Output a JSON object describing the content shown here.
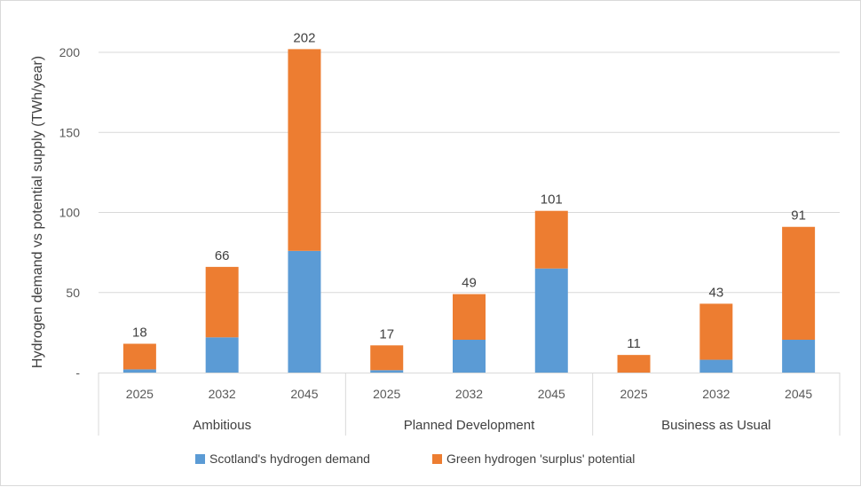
{
  "chart_data": {
    "type": "bar",
    "stacked": true,
    "ylabel": "Hydrogen demand vs potential supply (TWh/year)",
    "ylim": [
      0,
      210
    ],
    "yticks": [
      0,
      50,
      100,
      150,
      200
    ],
    "ytick_labels": [
      "-",
      "50",
      "100",
      "150",
      "200"
    ],
    "grid": true,
    "legend_position": "bottom",
    "groups": [
      {
        "name": "Ambitious",
        "categories": [
          "2025",
          "2032",
          "2045"
        ]
      },
      {
        "name": "Planned Development",
        "categories": [
          "2025",
          "2032",
          "2045"
        ]
      },
      {
        "name": "Business as Usual",
        "categories": [
          "2025",
          "2032",
          "2045"
        ]
      }
    ],
    "categories": [
      "2025",
      "2032",
      "2045",
      "2025",
      "2032",
      "2045",
      "2025",
      "2032",
      "2045"
    ],
    "series": [
      {
        "name": "Scotland's hydrogen demand",
        "color": "#5b9bd5",
        "values": [
          2,
          22,
          76,
          1.5,
          20.5,
          65,
          0,
          8,
          20.5
        ]
      },
      {
        "name": "Green hydrogen 'surplus' potential",
        "color": "#ed7d31",
        "values": [
          16,
          44,
          126,
          15.5,
          28.5,
          36,
          11,
          35,
          70.5
        ]
      }
    ],
    "totals": [
      "18",
      "66",
      "202",
      "17",
      "49",
      "101",
      "11",
      "43",
      "91"
    ]
  }
}
